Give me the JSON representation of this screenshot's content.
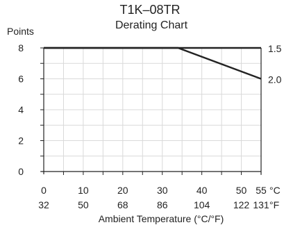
{
  "chart_data": {
    "type": "line",
    "title": "T1K–08TR",
    "subtitle": "Derating Chart",
    "ylabel": "Points",
    "xlabel": "Ambient Temperature (°C/°F)",
    "x_unit_c": "°C",
    "x_unit_f": "°F",
    "xlim": [
      0,
      55
    ],
    "ylim": [
      0,
      8
    ],
    "x_ticks": [
      0,
      10,
      20,
      30,
      40,
      50,
      55
    ],
    "x_tick_labels_c": [
      "0",
      "10",
      "20",
      "30",
      "40",
      "50",
      "55"
    ],
    "x_tick_labels_f": [
      "32",
      "50",
      "68",
      "86",
      "104",
      "122",
      "131"
    ],
    "y_ticks": [
      0,
      2,
      4,
      6,
      8
    ],
    "y_tick_labels": [
      "0",
      "2",
      "4",
      "6",
      "8"
    ],
    "grid": true,
    "series": [
      {
        "name": "1.5",
        "x": [
          0,
          55
        ],
        "y": [
          8,
          8
        ]
      },
      {
        "name": "2.0",
        "x": [
          0,
          34,
          55
        ],
        "y": [
          8,
          8,
          6
        ]
      }
    ],
    "colors": {
      "line": "#222222",
      "grid": "#d9d9d9",
      "axis": "#222222"
    }
  }
}
